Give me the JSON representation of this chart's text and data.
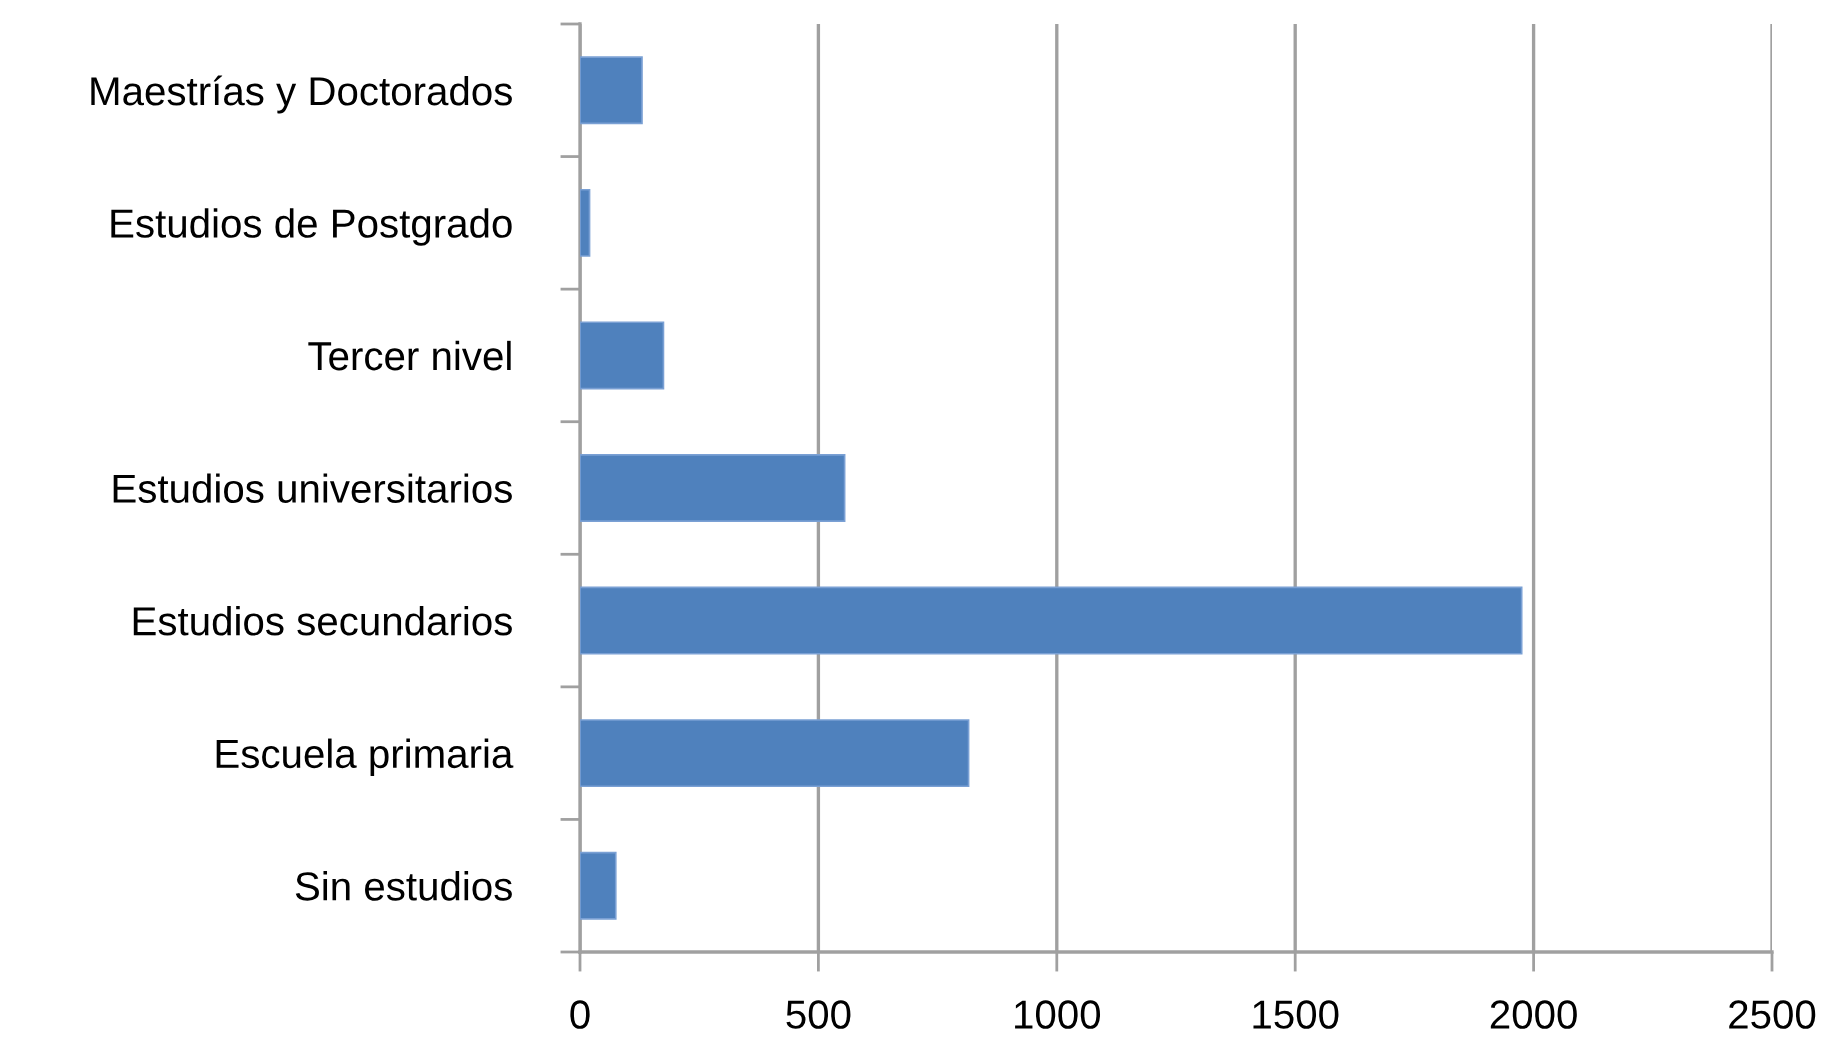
{
  "chart_data": {
    "type": "bar",
    "orientation": "horizontal",
    "categories": [
      "Maestrías y Doctorados",
      "Estudios de Postgrado",
      "Tercer nivel",
      "Estudios universitarios",
      "Estudios secundarios",
      "Escuela primaria",
      "Sin estudios"
    ],
    "values": [
      130,
      20,
      175,
      555,
      1975,
      815,
      75
    ],
    "color": "#4f81bd",
    "xlim": [
      0,
      2500
    ],
    "xticks": [
      0,
      500,
      1000,
      1500,
      2000,
      2500
    ],
    "grid": "x",
    "legend": false
  }
}
